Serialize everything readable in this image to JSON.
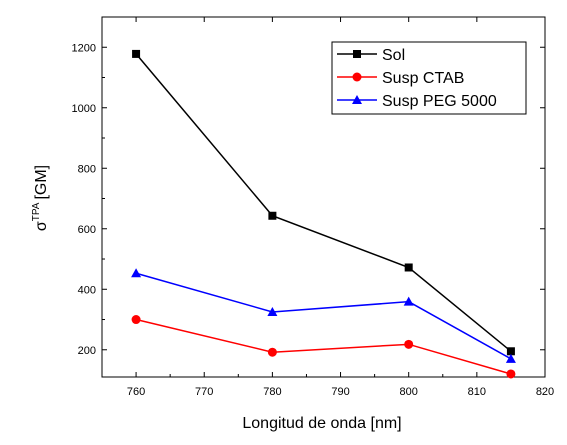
{
  "chart_data": {
    "type": "line",
    "xlabel": "Longitud de onda [nm]",
    "ylabel_symbol": "σ",
    "ylabel_superscript": "TPA",
    "ylabel_unit": "[GM]",
    "xlim": [
      755,
      820
    ],
    "ylim": [
      110,
      1300
    ],
    "xticks": [
      760,
      770,
      780,
      790,
      800,
      810,
      820
    ],
    "yticks": [
      200,
      400,
      600,
      800,
      1000,
      1200
    ],
    "x": [
      760,
      780,
      800,
      815
    ],
    "series": [
      {
        "name": "Sol",
        "color": "#000000",
        "marker": "square",
        "values": [
          1178,
          643,
          472,
          195
        ]
      },
      {
        "name": "Susp CTAB",
        "color": "#ff0000",
        "marker": "star",
        "values": [
          300,
          192,
          218,
          120
        ]
      },
      {
        "name": "Susp PEG 5000",
        "color": "#0000ff",
        "marker": "triangle",
        "values": [
          453,
          325,
          359,
          170
        ]
      }
    ],
    "legend_position": "top-right",
    "grid": false
  }
}
